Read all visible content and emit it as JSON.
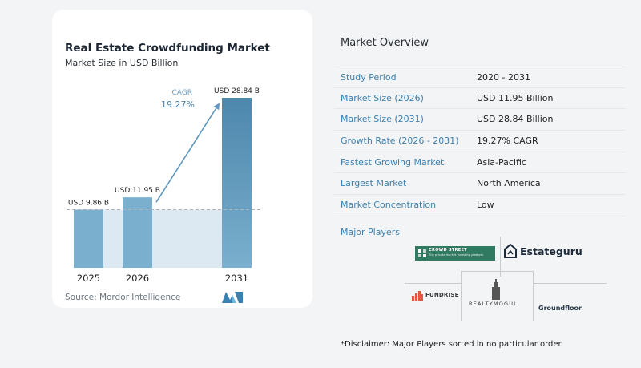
{
  "chart_data": {
    "type": "bar",
    "title": "Real Estate Crowdfunding Market",
    "subtitle": "Market Size in USD Billion",
    "categories": [
      "2025",
      "2026",
      "2031"
    ],
    "values": [
      9.86,
      11.95,
      28.84
    ],
    "value_labels": [
      "USD 9.86 B",
      "USD 11.95 B",
      "USD 28.84 B"
    ],
    "ylim": [
      0,
      30
    ],
    "grid": false,
    "annotation": {
      "label": "CAGR",
      "value": "19.27%"
    },
    "colors": {
      "bar_light": "#7aafce",
      "bar_dark": "#4d87ac",
      "shade": "#dce9f3",
      "dashed_line": "#a9b4bd",
      "arrow": "#5d97bf"
    }
  },
  "source": "Source:  Mordor Intelligence",
  "overview": {
    "title": "Market Overview",
    "rows": [
      {
        "label": "Study Period",
        "value": "2020 - 2031"
      },
      {
        "label": "Market Size (2026)",
        "value": "USD 11.95 Billion"
      },
      {
        "label": "Market Size (2031)",
        "value": "USD 28.84 Billion"
      },
      {
        "label": "Growth Rate (2026 - 2031)",
        "value": "19.27% CAGR"
      },
      {
        "label": "Fastest Growing Market",
        "value": "Asia-Pacific"
      },
      {
        "label": "Largest Market",
        "value": "North America"
      },
      {
        "label": "Market Concentration",
        "value": "Low"
      }
    ]
  },
  "players": {
    "title": "Major Players",
    "logos": {
      "crowdstreet": {
        "name": "CROWD STREET",
        "tagline": "The private market investing platform"
      },
      "estateguru": "Estateguru",
      "fundrise": "FUNDRISE",
      "realtymogul": "REALTYMOGUL",
      "groundfloor": "Groundfloor"
    }
  },
  "disclaimer": "*Disclaimer: Major Players sorted in no particular order"
}
